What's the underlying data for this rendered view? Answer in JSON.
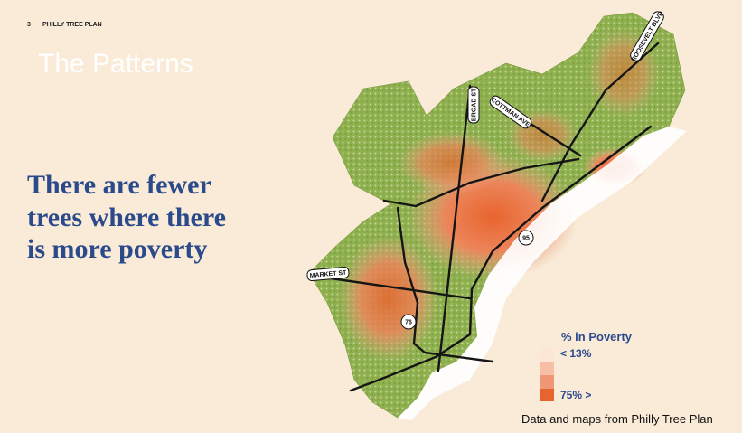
{
  "header": {
    "page_number": "3",
    "title": "PHILLY TREE PLAN"
  },
  "slide": {
    "title": "The Patterns",
    "headline": [
      "There are fewer",
      "trees where there",
      "is more poverty"
    ]
  },
  "map": {
    "labels": {
      "roosevelt": "ROOSEVELT BLVD",
      "broad": "BROAD ST",
      "cottman": "COTTMAN AVE",
      "market": "MARKET ST",
      "i95": "95",
      "i76": "76"
    }
  },
  "legend": {
    "title": "% in Poverty",
    "low": "< 13%",
    "high": "75% >"
  },
  "footer": {
    "source": "Data and maps from Philly Tree Plan"
  }
}
